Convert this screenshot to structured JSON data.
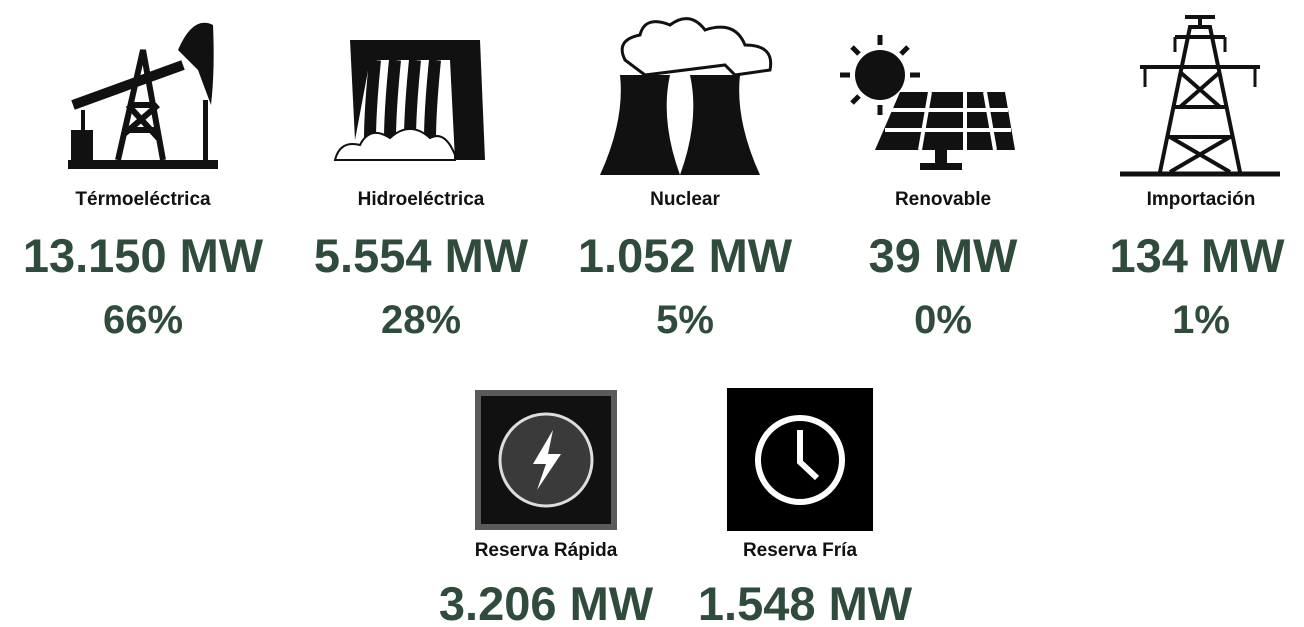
{
  "sources": [
    {
      "label": "Térmoeléctrica",
      "value": "13.150 MW",
      "share": "66%"
    },
    {
      "label": "Hidroeléctrica",
      "value": "5.554 MW",
      "share": "28%"
    },
    {
      "label": "Nuclear",
      "value": "1.052 MW",
      "share": "5%"
    },
    {
      "label": "Renovable",
      "value": "39 MW",
      "share": "0%"
    },
    {
      "label": "Importación",
      "value": "134 MW",
      "share": "1%"
    }
  ],
  "reserves": [
    {
      "label": "Reserva Rápida",
      "value": "3.206 MW"
    },
    {
      "label": "Reserva Fría",
      "value": "1.548 MW"
    }
  ]
}
